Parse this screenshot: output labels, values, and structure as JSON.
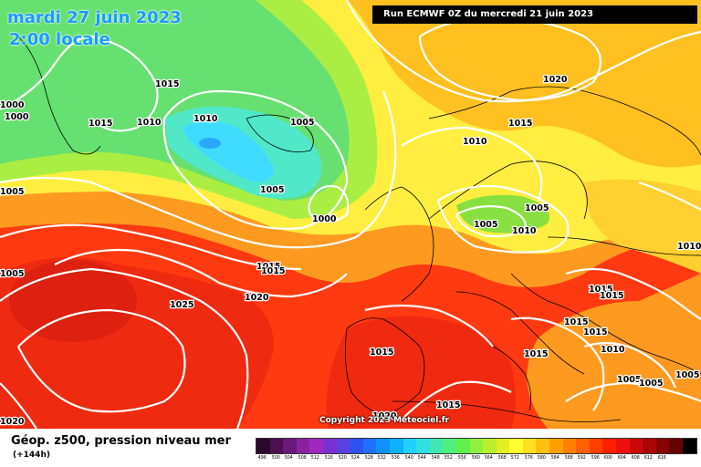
{
  "header": {
    "date": "mardi 27 juin 2023",
    "time": "2:00 locale",
    "run": "Run ECMWF 0Z du mercredi 21 juin 2023"
  },
  "copyright": "Copyright 2023 Meteociel.fr",
  "footer": {
    "title": "Géop. z500, pression niveau mer",
    "lead": "(+144h)"
  },
  "colors": {
    "blue_low": "#44ddff",
    "green": "#66ee66",
    "yellow": "#ffff66",
    "orange": "#ffaa00",
    "red": "#ff2200",
    "isobar": "#ffffff"
  },
  "pressure_labels": [
    "1015",
    "1000",
    "1000",
    "1015",
    "1010",
    "1010",
    "1005",
    "1005",
    "1005",
    "1000",
    "1005",
    "1015",
    "1015",
    "1020",
    "1025",
    "1020",
    "1015",
    "1010",
    "1005",
    "1010",
    "1005",
    "1010",
    "1020",
    "1015",
    "1015",
    "1015",
    "1015",
    "1010",
    "1015",
    "1015",
    "1005",
    "1005",
    "1005",
    "1020",
    "1015"
  ],
  "colorbar": {
    "colors": [
      "#2a0a2a",
      "#4a1050",
      "#6a1a7a",
      "#8a22a0",
      "#a028c0",
      "#7a30d0",
      "#5a40e0",
      "#3050f0",
      "#2070ff",
      "#1090ff",
      "#10b0ff",
      "#20d0ff",
      "#30e0e0",
      "#40e8b0",
      "#50f080",
      "#60f050",
      "#90f040",
      "#b8f030",
      "#e0f020",
      "#ffff30",
      "#ffe020",
      "#ffc010",
      "#ffa000",
      "#ff8000",
      "#ff6000",
      "#ff4000",
      "#ff2000",
      "#ee1010",
      "#cc0808",
      "#aa0505",
      "#880303",
      "#660202",
      "#000000"
    ],
    "labels": [
      "496",
      "500",
      "504",
      "508",
      "512",
      "516",
      "520",
      "524",
      "528",
      "532",
      "536",
      "540",
      "544",
      "548",
      "552",
      "556",
      "560",
      "564",
      "568",
      "572",
      "576",
      "580",
      "584",
      "588",
      "592",
      "596",
      "600",
      "604",
      "608",
      "612",
      "616"
    ]
  }
}
